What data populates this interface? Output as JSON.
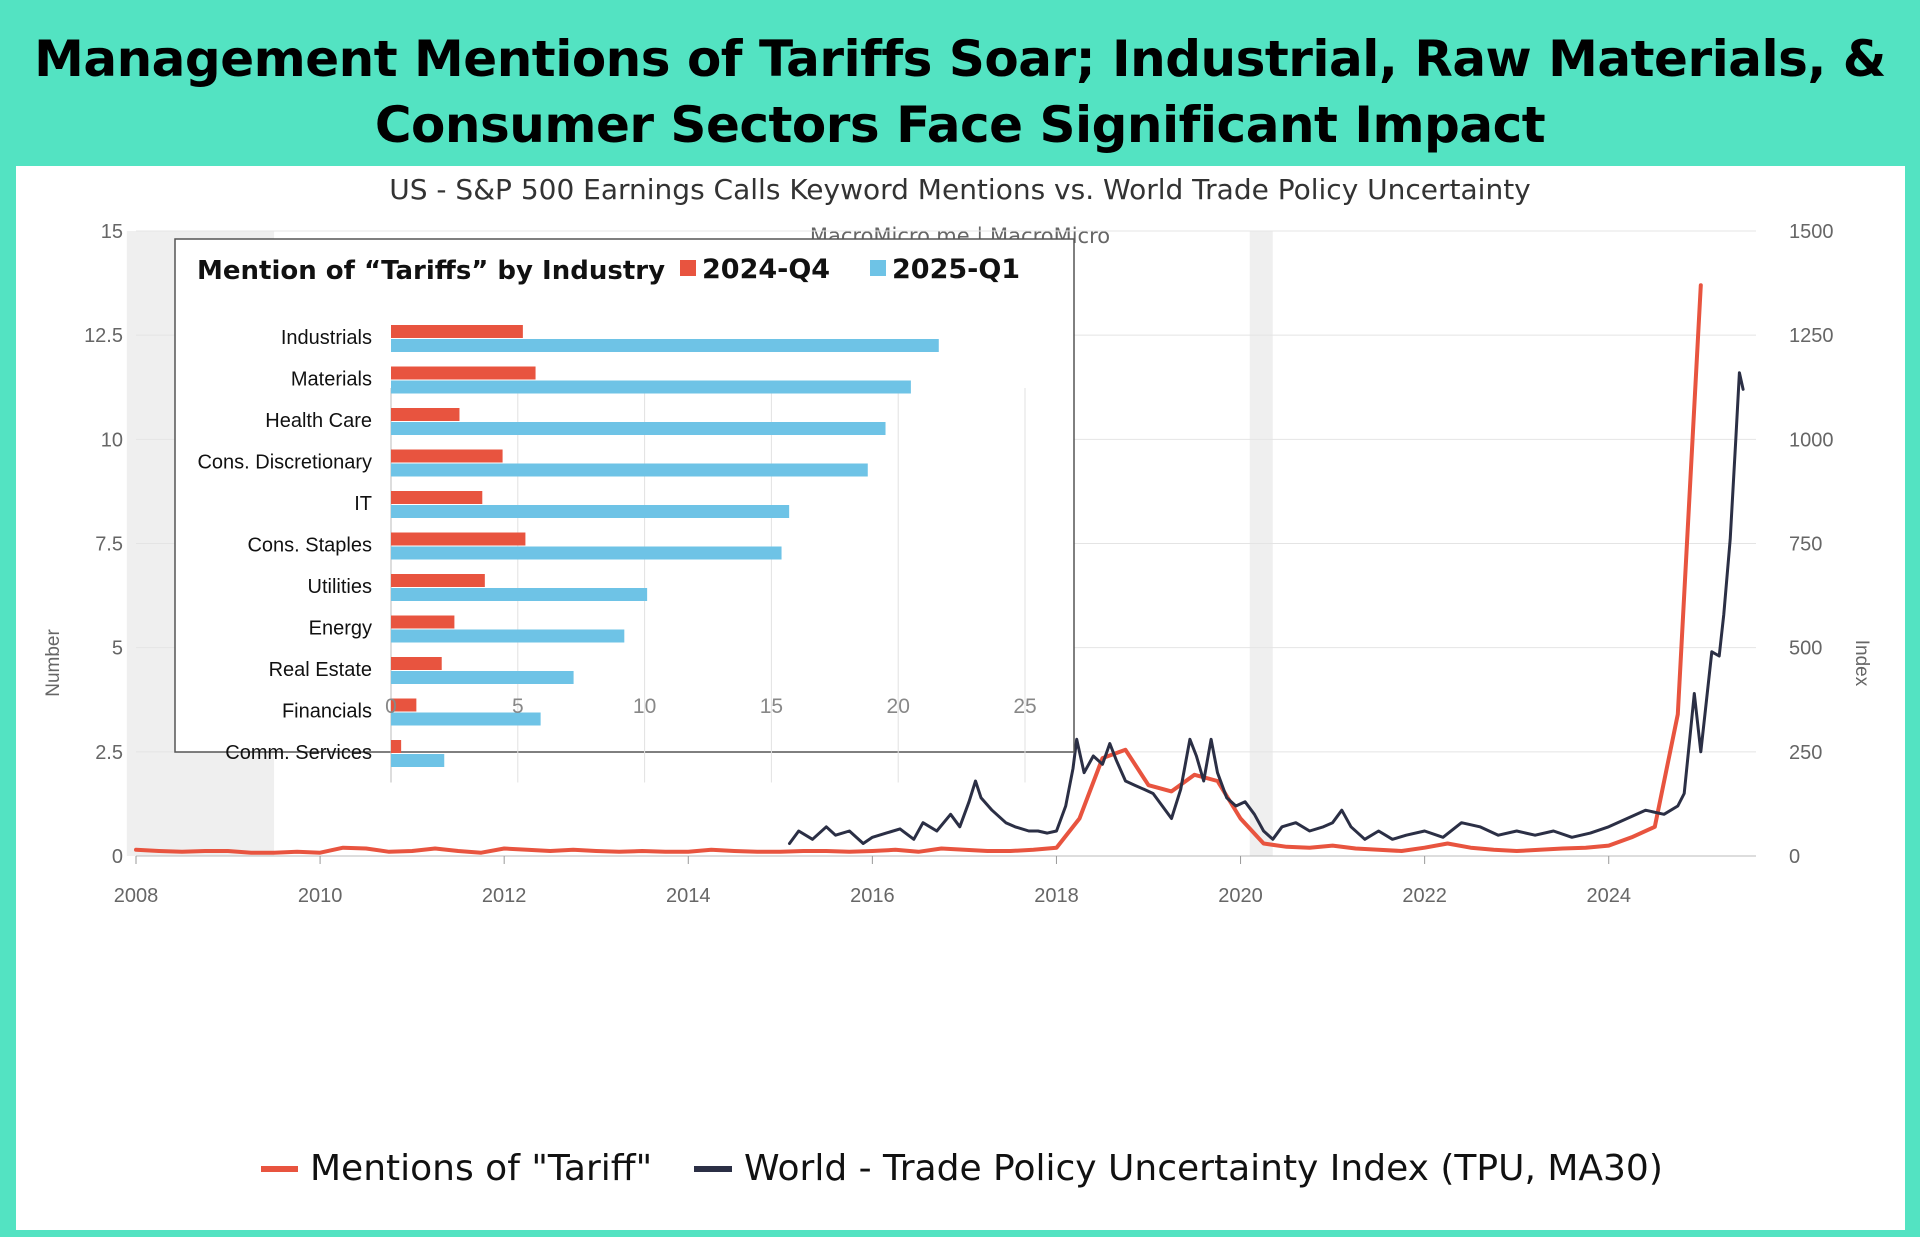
{
  "header": {
    "title_line1": "Management Mentions of Tariffs Soar; Industrial, Raw Materials, &",
    "title_line2": "Consumer Sectors Face Significant Impact"
  },
  "colors": {
    "banner": "#53e3c2",
    "tariff_line": "#e8543f",
    "tpu_line": "#2b2f45",
    "q4_bar": "#e8543f",
    "q1_bar": "#6ec3e6",
    "recession_shade": "#efefef"
  },
  "chart_data": [
    {
      "type": "line",
      "title": "US - S&P 500 Earnings Calls Keyword Mentions vs. World Trade Policy Uncertainty",
      "subtitle": "MacroMicro.me | MacroMicro",
      "ylabel_left": "Number",
      "ylabel_right": "Index",
      "xlim": [
        2008,
        2025.6
      ],
      "ylim_left": [
        0,
        15
      ],
      "ylim_right": [
        0,
        1500
      ],
      "x_ticks": [
        "2008",
        "2010",
        "2012",
        "2014",
        "2016",
        "2018",
        "2020",
        "2022",
        "2024"
      ],
      "y_ticks_left": [
        "0",
        "2.5",
        "5",
        "7.5",
        "10",
        "12.5",
        "15"
      ],
      "y_ticks_right": [
        "0",
        "250",
        "500",
        "750",
        "1000",
        "1250",
        "1500"
      ],
      "shaded_periods": [
        [
          2007.9,
          2009.5
        ],
        [
          2020.1,
          2020.35
        ]
      ],
      "legend": [
        "Mentions of \"Tariff\"",
        "World - Trade Policy Uncertainty Index (TPU, MA30)"
      ],
      "series": [
        {
          "name": "Mentions of \"Tariff\"",
          "axis": "left",
          "x": [
            2008,
            2008.25,
            2008.5,
            2008.75,
            2009,
            2009.25,
            2009.5,
            2009.75,
            2010,
            2010.25,
            2010.5,
            2010.75,
            2011,
            2011.25,
            2011.5,
            2011.75,
            2012,
            2012.25,
            2012.5,
            2012.75,
            2013,
            2013.25,
            2013.5,
            2013.75,
            2014,
            2014.25,
            2014.5,
            2014.75,
            2015,
            2015.25,
            2015.5,
            2015.75,
            2016,
            2016.25,
            2016.5,
            2016.75,
            2017,
            2017.25,
            2017.5,
            2017.75,
            2018,
            2018.25,
            2018.5,
            2018.75,
            2019,
            2019.25,
            2019.5,
            2019.75,
            2020,
            2020.25,
            2020.5,
            2020.75,
            2021,
            2021.25,
            2021.5,
            2021.75,
            2022,
            2022.25,
            2022.5,
            2022.75,
            2023,
            2023.25,
            2023.5,
            2023.75,
            2024,
            2024.25,
            2024.5,
            2024.75,
            2025
          ],
          "values": [
            0.15,
            0.12,
            0.1,
            0.12,
            0.12,
            0.08,
            0.08,
            0.1,
            0.08,
            0.2,
            0.18,
            0.1,
            0.12,
            0.18,
            0.12,
            0.08,
            0.18,
            0.15,
            0.12,
            0.15,
            0.12,
            0.1,
            0.12,
            0.1,
            0.1,
            0.15,
            0.12,
            0.1,
            0.1,
            0.12,
            0.12,
            0.1,
            0.12,
            0.15,
            0.1,
            0.18,
            0.15,
            0.12,
            0.12,
            0.15,
            0.2,
            0.9,
            2.35,
            2.55,
            1.7,
            1.55,
            1.95,
            1.8,
            0.9,
            0.3,
            0.22,
            0.2,
            0.25,
            0.18,
            0.15,
            0.12,
            0.2,
            0.3,
            0.2,
            0.15,
            0.12,
            0.15,
            0.18,
            0.2,
            0.25,
            0.45,
            0.7,
            3.4,
            13.7
          ]
        },
        {
          "name": "World - Trade Policy Uncertainty Index (TPU, MA30)",
          "axis": "right",
          "x": [
            2015.1,
            2015.2,
            2015.35,
            2015.5,
            2015.6,
            2015.75,
            2015.9,
            2016,
            2016.15,
            2016.3,
            2016.45,
            2016.55,
            2016.7,
            2016.85,
            2016.95,
            2017.05,
            2017.12,
            2017.18,
            2017.3,
            2017.45,
            2017.55,
            2017.7,
            2017.8,
            2017.9,
            2018,
            2018.1,
            2018.18,
            2018.22,
            2018.3,
            2018.4,
            2018.5,
            2018.58,
            2018.65,
            2018.75,
            2018.85,
            2018.95,
            2019.05,
            2019.15,
            2019.25,
            2019.35,
            2019.45,
            2019.52,
            2019.6,
            2019.68,
            2019.75,
            2019.85,
            2019.95,
            2020.05,
            2020.15,
            2020.25,
            2020.35,
            2020.45,
            2020.6,
            2020.75,
            2020.9,
            2021,
            2021.1,
            2021.2,
            2021.35,
            2021.5,
            2021.65,
            2021.8,
            2022,
            2022.2,
            2022.4,
            2022.6,
            2022.8,
            2023,
            2023.2,
            2023.4,
            2023.6,
            2023.8,
            2024,
            2024.2,
            2024.4,
            2024.6,
            2024.75,
            2024.82,
            2024.88,
            2024.93,
            2025,
            2025.05,
            2025.12,
            2025.2,
            2025.25,
            2025.32,
            2025.38,
            2025.42,
            2025.46
          ],
          "values": [
            30,
            60,
            40,
            70,
            50,
            60,
            30,
            45,
            55,
            65,
            40,
            80,
            60,
            100,
            70,
            130,
            180,
            140,
            110,
            80,
            70,
            60,
            60,
            55,
            60,
            120,
            210,
            280,
            200,
            240,
            220,
            270,
            230,
            180,
            170,
            160,
            150,
            120,
            90,
            160,
            280,
            240,
            180,
            280,
            200,
            140,
            120,
            130,
            100,
            60,
            40,
            70,
            80,
            60,
            70,
            80,
            110,
            70,
            40,
            60,
            40,
            50,
            60,
            45,
            80,
            70,
            50,
            60,
            50,
            60,
            45,
            55,
            70,
            90,
            110,
            100,
            120,
            150,
            280,
            390,
            250,
            350,
            490,
            480,
            580,
            760,
            1000,
            1160,
            1120
          ]
        }
      ]
    },
    {
      "type": "bar",
      "orientation": "horizontal",
      "title": "Mention of “Tariffs” by Industry",
      "categories": [
        "Industrials",
        "Materials",
        "Health Care",
        "Cons. Discretionary",
        "IT",
        "Cons. Staples",
        "Utilities",
        "Energy",
        "Real Estate",
        "Financials",
        "Comm. Services"
      ],
      "series": [
        {
          "name": "2024-Q4",
          "values": [
            5.2,
            5.7,
            2.7,
            4.4,
            3.6,
            5.3,
            3.7,
            2.5,
            2.0,
            1.0,
            0.4
          ]
        },
        {
          "name": "2025-Q1",
          "values": [
            21.6,
            20.5,
            19.5,
            18.8,
            15.7,
            15.4,
            10.1,
            9.2,
            7.2,
            5.9,
            2.1
          ]
        }
      ],
      "xlim": [
        0,
        25
      ],
      "x_ticks": [
        "0",
        "5",
        "10",
        "15",
        "20",
        "25"
      ],
      "legend_position": "top-right"
    }
  ]
}
